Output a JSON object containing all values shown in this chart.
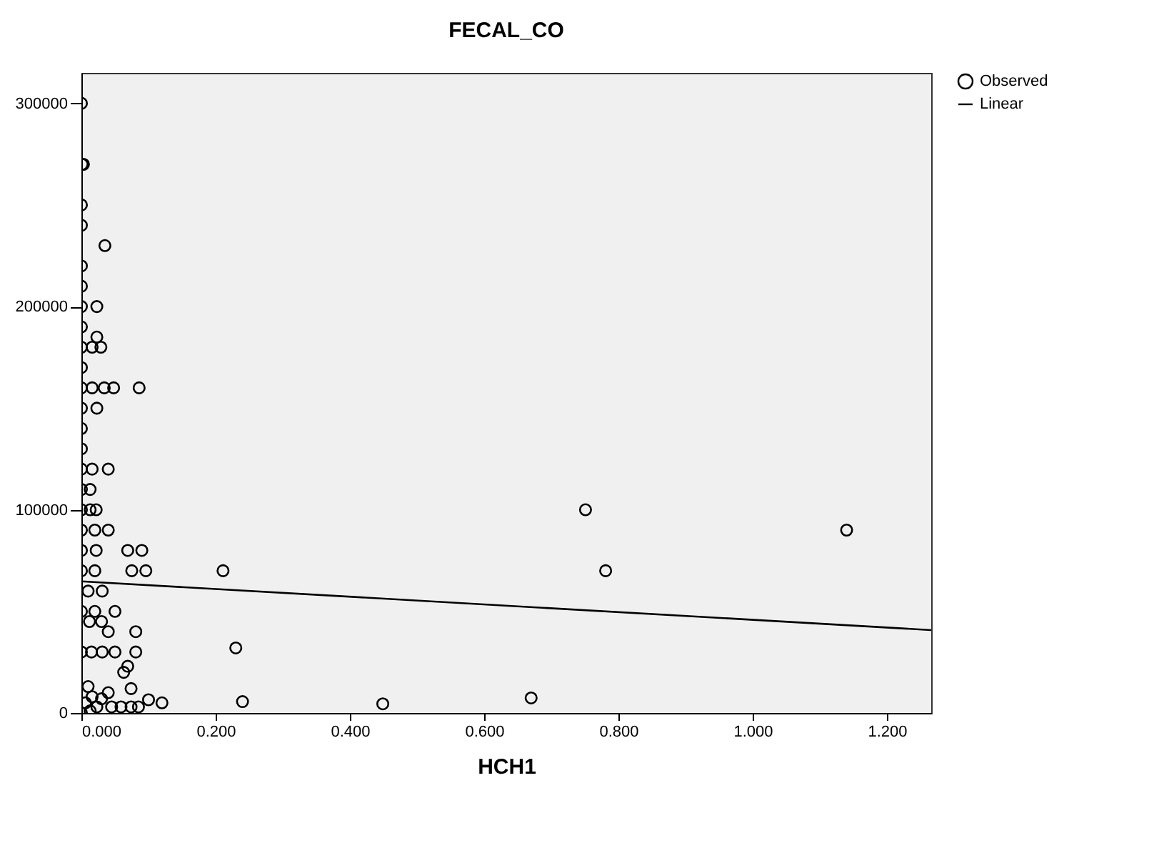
{
  "chart_data": {
    "type": "scatter",
    "title": "FECAL_CO",
    "xlabel": "HCH1",
    "xlim": [
      0,
      1.266
    ],
    "ylim": [
      0,
      315000
    ],
    "xticks": [
      {
        "value": 0,
        "label": "0.000"
      },
      {
        "value": 0.2,
        "label": "0.200"
      },
      {
        "value": 0.4,
        "label": "0.400"
      },
      {
        "value": 0.6,
        "label": "0.600"
      },
      {
        "value": 0.8,
        "label": "0.800"
      },
      {
        "value": 1.0,
        "label": "1.000"
      },
      {
        "value": 1.2,
        "label": "1.200"
      }
    ],
    "yticks": [
      0,
      100000,
      200000,
      300000
    ],
    "legend": "top right",
    "series": [
      {
        "name": "Observed",
        "marker": "circle",
        "color": "#000000",
        "x": [
          0,
          0.001,
          0.003,
          0,
          0,
          0.035,
          0,
          0,
          0,
          0.023,
          0,
          0.023,
          0,
          0.016,
          0.029,
          0,
          0,
          0.016,
          0.034,
          0.048,
          0.086,
          0,
          0.023,
          0,
          0,
          0,
          0.016,
          0.04,
          0,
          0.013,
          0,
          0.013,
          0.022,
          0,
          0.02,
          0.04,
          0,
          0.022,
          0.069,
          0.09,
          0,
          0.02,
          0.075,
          0.096,
          0.01,
          0.031,
          0,
          0.02,
          0.05,
          0.012,
          0.03,
          0.04,
          0.081,
          0,
          0.015,
          0.031,
          0.05,
          0.081,
          0.069,
          0.063,
          0.074,
          0.04,
          0.1,
          0.12,
          0.045,
          0.059,
          0.074,
          0.085,
          0.01,
          0.016,
          0.006,
          0.023,
          0.03,
          0.013,
          0,
          0.211,
          0.23,
          0.24,
          0.449,
          0.67,
          0.751,
          0.781,
          1.14
        ],
        "values": [
          300000,
          270000,
          270000,
          250000,
          240000,
          230000,
          220000,
          210000,
          200000,
          200000,
          190000,
          185000,
          180000,
          180000,
          180000,
          170000,
          160000,
          160000,
          160000,
          160000,
          160000,
          150000,
          150000,
          140000,
          130000,
          120000,
          120000,
          120000,
          110000,
          110000,
          100000,
          100000,
          100000,
          90000,
          90000,
          90000,
          80000,
          80000,
          80000,
          80000,
          70000,
          70000,
          70000,
          70000,
          60000,
          60000,
          50000,
          50000,
          50000,
          45000,
          45000,
          40000,
          40000,
          30000,
          30000,
          30000,
          30000,
          30000,
          23000,
          20000,
          12000,
          10000,
          6500,
          5000,
          3000,
          3000,
          3000,
          3000,
          13000,
          8000,
          5000,
          3000,
          7000,
          1000,
          0,
          70000,
          32000,
          5600,
          4500,
          7400,
          100000,
          70000,
          90000
        ]
      },
      {
        "name": "Linear",
        "type": "line",
        "marker": "none",
        "color": "#000000",
        "x": [
          0,
          1.266
        ],
        "values": [
          64800,
          40800
        ]
      }
    ]
  }
}
